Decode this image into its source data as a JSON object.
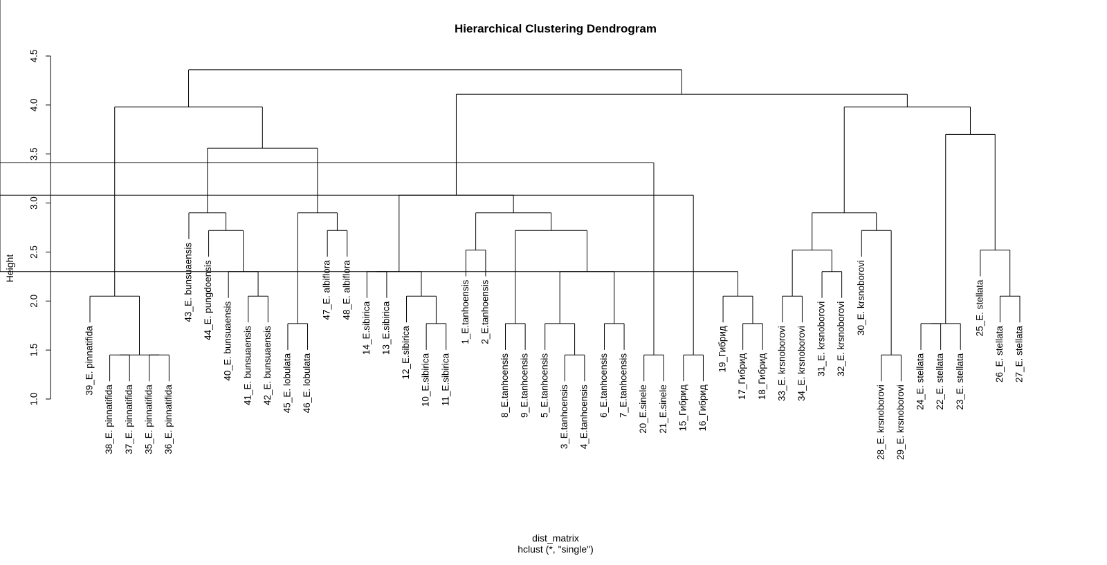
{
  "chart_data": {
    "type": "dendrogram",
    "title": "Hierarchical Clustering Dendrogram",
    "xlabel": "dist_matrix",
    "sub": "hclust (*, \"single\")",
    "ylabel": "Height",
    "ylim": [
      1.0,
      4.5
    ],
    "yticks": [
      "1.0",
      "1.5",
      "2.0",
      "2.5",
      "3.0",
      "3.5",
      "4.0",
      "4.5"
    ],
    "labels": [
      "39_E. pinnatifida",
      "38_E. pinnatifida",
      "37_E. pinnatifida",
      "35_E. pinnatifida",
      "36_E. pinnatifida",
      "43_E. bunsuaensis",
      "44_E. pungdoensis",
      "40_E. bunsuaensis",
      "41_E. bunsuaensis",
      "42_E. bunsuaensis",
      "45_E. lobulata",
      "46_E. lobulata",
      "47_E. albiflora",
      "48_E. albiflora",
      "14_E.sibirica",
      "13_E.sibirica",
      "12_E.sibirica",
      "10_E.sibirica",
      "11_E.sibirica",
      "1_E.tanhoensis",
      "2_E.tanhoensis",
      "8_E.tanhoensis",
      "9_E.tanhoensis",
      "5_E.tanhoensis",
      "3_E.tanhoensis",
      "4_E.tanhoensis",
      "6_E.tanhoensis",
      "7_E.tanhoensis",
      "20_E.sinele",
      "21_E.sinele",
      "15_Гибрид",
      "16_Гибрид",
      "19_Гибрид",
      "17_Гибрид",
      "18_Гибрид",
      "33_E. krsnoborovi",
      "34_E. krsnoborovi",
      "31_E. krsnoborovi",
      "32_E. krsnoborovi",
      "30_E. krsnoborovi",
      "28_E. krsnoborovi",
      "29_E. krsnoborovi",
      "24_E. stellata",
      "22_E. stellata",
      "23_E. stellata",
      "25_E. stellata",
      "26_E. stellata",
      "27_E. stellata"
    ],
    "merges": [
      [
        -2,
        -3,
        1.45
      ],
      [
        -4,
        -5,
        1.45
      ],
      [
        1,
        2,
        1.45
      ],
      [
        -1,
        3,
        2.05
      ],
      [
        -9,
        -10,
        2.05
      ],
      [
        -8,
        5,
        2.3
      ],
      [
        -7,
        6,
        2.72
      ],
      [
        -6,
        7,
        2.9
      ],
      [
        -11,
        -12,
        1.77
      ],
      [
        -13,
        -14,
        2.72
      ],
      [
        9,
        10,
        2.9
      ],
      [
        8,
        11,
        3.56
      ],
      [
        4,
        12,
        3.98
      ],
      [
        -18,
        -19,
        1.77
      ],
      [
        -17,
        14,
        2.05
      ],
      [
        -15,
        -16,
        2.3
      ],
      [
        16,
        15,
        2.3
      ],
      [
        -20,
        -21,
        2.52
      ],
      [
        -22,
        -23,
        1.77
      ],
      [
        -25,
        -26,
        1.45
      ],
      [
        -24,
        20,
        1.77
      ],
      [
        -27,
        -28,
        1.77
      ],
      [
        21,
        22,
        2.3
      ],
      [
        19,
        23,
        2.72
      ],
      [
        18,
        24,
        2.9
      ],
      [
        17,
        25,
        3.08
      ],
      [
        -29,
        -30,
        1.45
      ],
      [
        -31,
        -32,
        1.45
      ],
      [
        -34,
        -35,
        1.77
      ],
      [
        -33,
        29,
        2.05
      ],
      [
        31,
        30,
        2.3
      ],
      [
        28,
        32,
        3.08
      ],
      [
        27,
        33,
        3.41
      ],
      [
        -36,
        -37,
        2.05
      ],
      [
        -38,
        -39,
        2.3
      ],
      [
        34,
        35,
        2.52
      ],
      [
        -41,
        -42,
        1.45
      ],
      [
        -40,
        37,
        2.72
      ],
      [
        36,
        38,
        2.9
      ],
      [
        -43,
        -44,
        1.77
      ],
      [
        -45,
        40,
        1.77
      ],
      [
        -47,
        -48,
        2.05
      ],
      [
        -46,
        42,
        2.52
      ],
      [
        41,
        43,
        3.7
      ],
      [
        39,
        44,
        3.98
      ],
      [
        26,
        45,
        4.11
      ],
      [
        13,
        46,
        4.36
      ]
    ]
  }
}
